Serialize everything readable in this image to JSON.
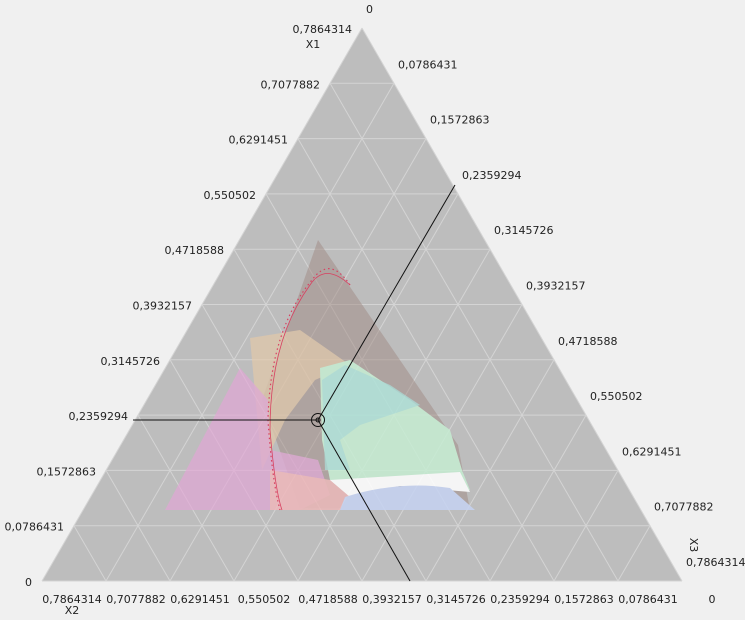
{
  "chart_data": {
    "type": "ternary",
    "axes": [
      {
        "title": "X1",
        "lim": [
          0,
          0.7864314
        ],
        "ticks": [
          0,
          {
            "value": 0.0786431,
            "label": "0,0786431"
          },
          {
            "value": 0.1572863,
            "label": "0,1572863"
          },
          {
            "value": 0.2359294,
            "label": "0,2359294"
          },
          {
            "value": 0.3145726,
            "label": "0,3145726"
          },
          {
            "value": 0.3932157,
            "label": "0,3932157"
          },
          {
            "value": 0.4718588,
            "label": "0,4718588"
          },
          {
            "value": 0.550502,
            "label": "0,550502"
          },
          {
            "value": 0.6291451,
            "label": "0,6291451"
          },
          {
            "value": 0.7077882,
            "label": "0,7077882"
          },
          {
            "value": 0.7864314,
            "label": "0,7864314"
          }
        ]
      },
      {
        "title": "X2",
        "lim": [
          0,
          0.7864314
        ],
        "ticks": [
          0,
          {
            "value": 0.0786431,
            "label": "0,0786431"
          },
          {
            "value": 0.1572863,
            "label": "0,1572863"
          },
          {
            "value": 0.2359294,
            "label": "0,2359294"
          },
          {
            "value": 0.3145726,
            "label": "0,3145726"
          },
          {
            "value": 0.3932157,
            "label": "0,3932157"
          },
          {
            "value": 0.4718588,
            "label": "0,4718588"
          },
          {
            "value": 0.550502,
            "label": "0,550502"
          },
          {
            "value": 0.6291451,
            "label": "0,6291451"
          },
          {
            "value": 0.7077882,
            "label": "0,7077882"
          },
          {
            "value": 0.7864314,
            "label": "0,7864314"
          }
        ]
      },
      {
        "title": "X3",
        "lim": [
          0,
          0.7864314
        ],
        "ticks": [
          0,
          {
            "value": 0.0786431,
            "label": "0,0786431"
          },
          {
            "value": 0.1572863,
            "label": "0,1572863"
          },
          {
            "value": 0.2359294,
            "label": "0,2359294"
          },
          {
            "value": 0.3145726,
            "label": "0,3145726"
          },
          {
            "value": 0.3932157,
            "label": "0,3932157"
          },
          {
            "value": 0.4718588,
            "label": "0,4718588"
          },
          {
            "value": 0.550502,
            "label": "0,550502"
          },
          {
            "value": 0.6291451,
            "label": "0,6291451"
          },
          {
            "value": 0.7077882,
            "label": "0,7077882"
          },
          {
            "value": 0.7864314,
            "label": "0,7864314"
          }
        ]
      }
    ],
    "grid": true
  }
}
